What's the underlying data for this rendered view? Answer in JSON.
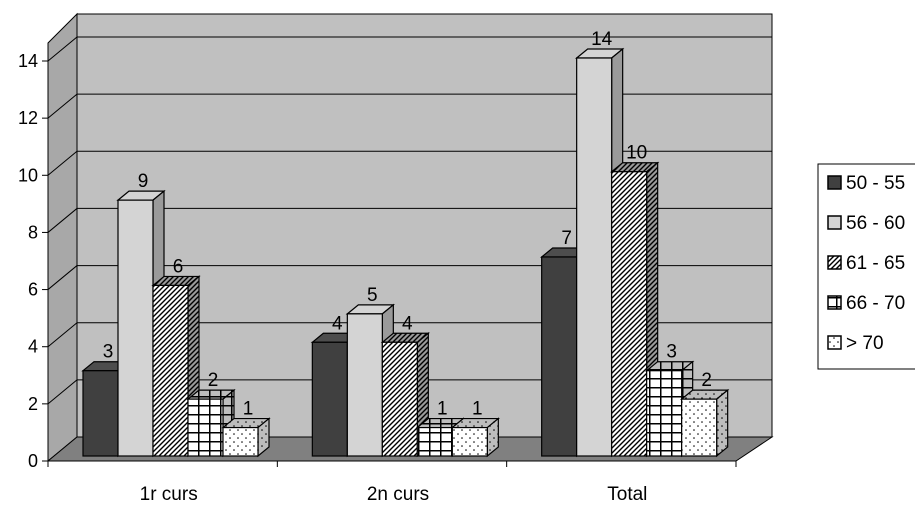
{
  "chart_data": {
    "type": "bar",
    "categories": [
      "1r curs",
      "2n curs",
      "Total"
    ],
    "series": [
      {
        "name": "50 - 55",
        "values": [
          3,
          4,
          7
        ],
        "pattern": "solid-dark"
      },
      {
        "name": "56 - 60",
        "values": [
          9,
          5,
          14
        ],
        "pattern": "solid-light"
      },
      {
        "name": "61 - 65",
        "values": [
          6,
          4,
          10
        ],
        "pattern": "diagonal"
      },
      {
        "name": "66 - 70",
        "values": [
          2,
          1,
          3
        ],
        "pattern": "grid"
      },
      {
        "name": "> 70",
        "values": [
          1,
          1,
          2
        ],
        "pattern": "dots"
      }
    ],
    "ylim": [
      0,
      14
    ],
    "yticks": [
      "0",
      "2",
      "4",
      "6",
      "8",
      "10",
      "12",
      "14"
    ],
    "grid": true,
    "legend": "right",
    "style": "3d-clustered-column",
    "colors": {
      "wall": "#c0c0c0",
      "floor": "#808080",
      "dark": "#404040",
      "light": "#d4d4d4"
    }
  }
}
